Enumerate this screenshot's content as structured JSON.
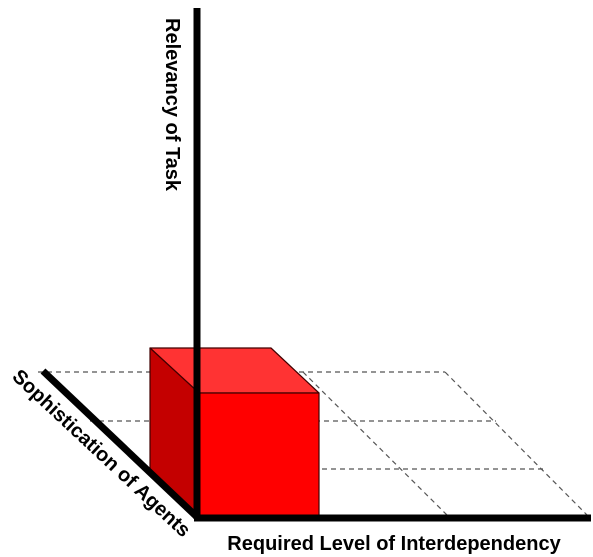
{
  "axes": {
    "vertical_label": "Relevancy of Task",
    "horizontal_label": "Required Level of Interdependency",
    "depth_label": "Sophistication of Agents"
  },
  "colors": {
    "axis": "#000000",
    "grid": "#555555",
    "cube_front": "#ff0000",
    "cube_top": "#ff3333",
    "cube_side": "#c40000",
    "cube_edge": "#400000"
  }
}
